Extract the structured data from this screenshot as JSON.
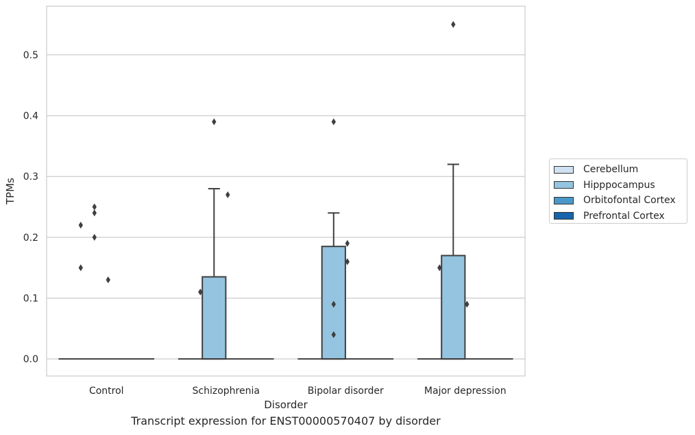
{
  "chart_data": {
    "type": "box",
    "caption": "Transcript expression for ENST00000570407 by disorder",
    "xlabel": "Disorder",
    "ylabel": "TPMs",
    "ylim": [
      -0.028,
      0.58
    ],
    "yticks": [
      0.0,
      0.1,
      0.2,
      0.3,
      0.4,
      0.5
    ],
    "ytick_labels": [
      "0.0",
      "0.1",
      "0.2",
      "0.3",
      "0.4",
      "0.5"
    ],
    "grid": "y",
    "legend_position": "right",
    "categories": [
      "Control",
      "Schizophrenia",
      "Bipolar disorder",
      "Major depression"
    ],
    "series": [
      {
        "name": "Cerebellum",
        "color": "#d0e1f2"
      },
      {
        "name": "Hipppocampus",
        "color": "#94c4df"
      },
      {
        "name": "Orbitofontal Cortex",
        "color": "#4a98c9"
      },
      {
        "name": "Prefrontal Cortex",
        "color": "#1764ab"
      }
    ],
    "boxes": [
      {
        "category": "Control",
        "series": "Hipppocampus",
        "whisker_low": 0.0,
        "q1": 0.0,
        "median": 0.0,
        "q3": 0.0,
        "whisker_high": 0.0,
        "outliers": [
          {
            "y": 0.22,
            "side": -1
          },
          {
            "y": 0.15,
            "side": -1
          },
          {
            "y": 0.25,
            "side": 0
          },
          {
            "y": 0.24,
            "side": 0
          },
          {
            "y": 0.2,
            "side": 0
          },
          {
            "y": 0.13,
            "side": 1
          }
        ]
      },
      {
        "category": "Schizophrenia",
        "series": "Hipppocampus",
        "whisker_low": 0.0,
        "q1": 0.0,
        "median": 0.0,
        "q3": 0.135,
        "whisker_high": 0.28,
        "outliers": [
          {
            "y": 0.11,
            "side": -1
          },
          {
            "y": 0.39,
            "side": 0
          },
          {
            "y": 0.27,
            "side": 1
          }
        ]
      },
      {
        "category": "Bipolar disorder",
        "series": "Hipppocampus",
        "whisker_low": 0.0,
        "q1": 0.0,
        "median": 0.0,
        "q3": 0.185,
        "whisker_high": 0.24,
        "outliers": [
          {
            "y": 0.39,
            "side": 0
          },
          {
            "y": 0.09,
            "side": 0
          },
          {
            "y": 0.04,
            "side": 0
          },
          {
            "y": 0.19,
            "side": 1
          },
          {
            "y": 0.16,
            "side": 1
          }
        ]
      },
      {
        "category": "Major depression",
        "series": "Hipppocampus",
        "whisker_low": 0.0,
        "q1": 0.0,
        "median": 0.0,
        "q3": 0.17,
        "whisker_high": 0.32,
        "outliers": [
          {
            "y": 0.55,
            "side": 0
          },
          {
            "y": 0.15,
            "side": -1
          },
          {
            "y": 0.09,
            "side": 1
          }
        ]
      }
    ]
  }
}
